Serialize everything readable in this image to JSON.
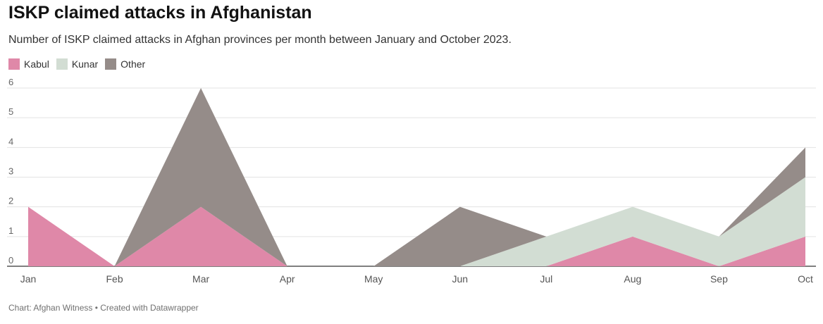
{
  "header": {
    "title": "ISKP claimed attacks in Afghanistan",
    "subtitle": "Number of ISKP claimed attacks in Afghan provinces per month between January and October 2023."
  },
  "footer": {
    "credit": "Chart: Afghan Witness • Created with Datawrapper"
  },
  "chart_data": {
    "type": "area",
    "stacked": true,
    "title": "ISKP claimed attacks in Afghanistan",
    "subtitle": "Number of ISKP claimed attacks in Afghan provinces per month between January and October 2023.",
    "categories": [
      "Jan",
      "Feb",
      "Mar",
      "Apr",
      "May",
      "Jun",
      "Jul",
      "Aug",
      "Sep",
      "Oct"
    ],
    "series": [
      {
        "name": "Kabul",
        "color": "#df88a8",
        "values": [
          2,
          0,
          2,
          0,
          0,
          0,
          0,
          1,
          0,
          1
        ]
      },
      {
        "name": "Kunar",
        "color": "#d2ddd3",
        "values": [
          0,
          0,
          0,
          0,
          0,
          0,
          1,
          1,
          1,
          2
        ]
      },
      {
        "name": "Other",
        "color": "#958c89",
        "values": [
          0,
          0,
          4,
          0,
          0,
          2,
          0,
          0,
          0,
          1
        ]
      }
    ],
    "yticks": [
      0,
      1,
      2,
      3,
      4,
      5,
      6
    ],
    "ylim": [
      0,
      6
    ],
    "xlabel": "",
    "ylabel": "",
    "grid": true,
    "legend_position": "top-left"
  }
}
